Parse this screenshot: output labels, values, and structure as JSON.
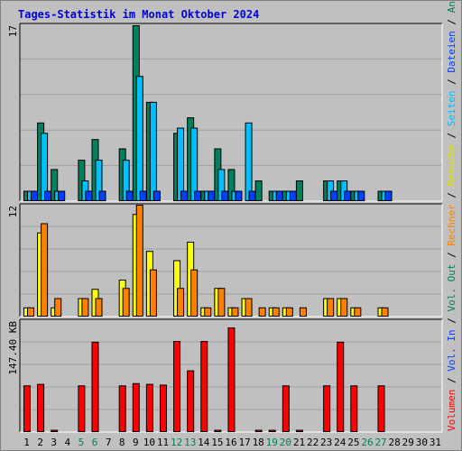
{
  "title": "Tages-Statistik im Monat Oktober 2024",
  "colors": {
    "hits": "#00805c",
    "files": "#00c0ff",
    "pages": "#0040ff",
    "visits": "#ffff00",
    "sites": "#ff8000",
    "volume": "#ff0000",
    "ink": "#0000e0",
    "weekend": "#00805c",
    "weekday": "#000000"
  },
  "right_legend": [
    {
      "text": "Volumen",
      "color": "#ff0000"
    },
    {
      "text": " / ",
      "color": "#000000"
    },
    {
      "text": "Vol. In",
      "color": "#0040ff"
    },
    {
      "text": " / ",
      "color": "#000000"
    },
    {
      "text": "Vol. Out",
      "color": "#00805c"
    },
    {
      "text": " / ",
      "color": "#000000"
    },
    {
      "text": "Rechner",
      "color": "#ff8000"
    },
    {
      "text": " / ",
      "color": "#000000"
    },
    {
      "text": "Besuche",
      "color": "#e0e000"
    },
    {
      "text": " / ",
      "color": "#000000"
    },
    {
      "text": "Seiten",
      "color": "#00c0ff"
    },
    {
      "text": " / ",
      "color": "#000000"
    },
    {
      "text": "Dateien",
      "color": "#0040ff"
    },
    {
      "text": " / ",
      "color": "#000000"
    },
    {
      "text": "Anfragen",
      "color": "#00805c"
    }
  ],
  "chart_data": {
    "type": "bar",
    "title": "Tages-Statistik im Monat Oktober 2024",
    "categories": [
      "1",
      "2",
      "3",
      "4",
      "5",
      "6",
      "7",
      "8",
      "9",
      "10",
      "11",
      "12",
      "13",
      "14",
      "15",
      "16",
      "17",
      "18",
      "19",
      "20",
      "21",
      "22",
      "23",
      "24",
      "25",
      "26",
      "27",
      "28",
      "29",
      "30",
      "31"
    ],
    "weekend_days": [
      5,
      6,
      12,
      13,
      19,
      20,
      26,
      27
    ],
    "panels": [
      {
        "ymax_label": "17",
        "ymax": 17,
        "series": [
          {
            "name": "Anfragen",
            "values": [
              1,
              7.6,
              3.1,
              0,
              4,
              6,
              0,
              5.1,
              17,
              9.6,
              0,
              6.6,
              8.1,
              1,
              5.1,
              3.1,
              0,
              2,
              1,
              1,
              2,
              0,
              2,
              2,
              1,
              0,
              1,
              0,
              0,
              0,
              0
            ]
          },
          {
            "name": "Dateien",
            "values": [
              1,
              6.6,
              1,
              0,
              2,
              4,
              0,
              4,
              12.1,
              9.6,
              0,
              7.1,
              7.1,
              1,
              3.1,
              1,
              7.6,
              0,
              1,
              1,
              0,
              0,
              2,
              2,
              1,
              0,
              1,
              0,
              0,
              0,
              0
            ]
          },
          {
            "name": "Seiten",
            "values": [
              1,
              1,
              1,
              0,
              1,
              1,
              0,
              1,
              1,
              1,
              0,
              1,
              1,
              1,
              1,
              1,
              1,
              0,
              1,
              1,
              0,
              0,
              1,
              1,
              1,
              0,
              1,
              0,
              0,
              0,
              0
            ]
          }
        ]
      },
      {
        "ymax_label": "12",
        "ymax": 12,
        "series": [
          {
            "name": "Besuche",
            "values": [
              1,
              9.1,
              1,
              0,
              2,
              3,
              0,
              4,
              11.1,
              7.1,
              0,
              6.1,
              8.1,
              1,
              3.1,
              1,
              2,
              0,
              1,
              1,
              0,
              0,
              2,
              2,
              1,
              0,
              1,
              0,
              0,
              0,
              0
            ]
          },
          {
            "name": "Rechner",
            "values": [
              1,
              10.1,
              2,
              0,
              2,
              2,
              0,
              3.1,
              12.1,
              5.1,
              0,
              3.1,
              5.1,
              1,
              3.1,
              1,
              2,
              1,
              1,
              1,
              1,
              0,
              2,
              2,
              1,
              0,
              1,
              0,
              0,
              0,
              0
            ]
          }
        ]
      },
      {
        "ymax_label": "147.40 KB",
        "ymax": 147.4,
        "series": [
          {
            "name": "Volumen",
            "values": [
              62,
              64,
              3,
              0,
              62,
              120,
              0,
              62,
              65,
              64,
              63,
              121,
              82,
              121,
              3,
              139,
              0,
              3,
              3,
              62,
              3,
              0,
              62,
              120,
              62,
              0,
              62,
              0,
              0,
              0,
              0
            ]
          }
        ]
      }
    ]
  }
}
